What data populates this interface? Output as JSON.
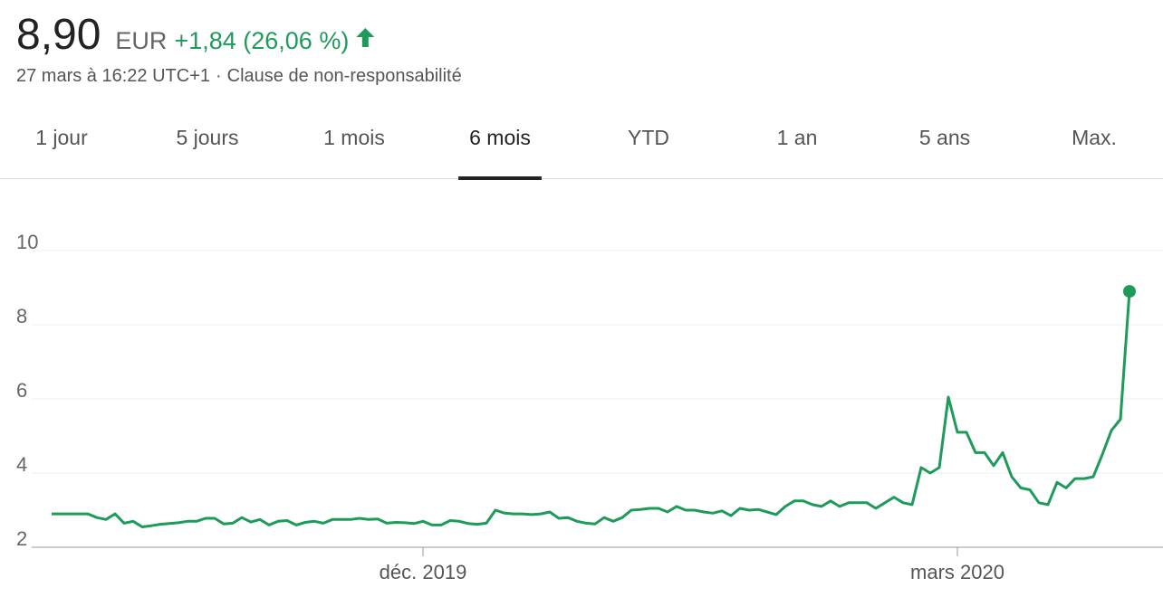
{
  "quote": {
    "price": "8,90",
    "currency": "EUR",
    "change": "+1,84 (26,06 %)",
    "timestamp": "27 mars à 16:22 UTC+1",
    "separator": "·",
    "disclaimer": "Clause de non-responsabilité"
  },
  "tabs": [
    "1 jour",
    "5 jours",
    "1 mois",
    "6 mois",
    "YTD",
    "1 an",
    "5 ans",
    "Max."
  ],
  "selected_tab": 3,
  "chart_data": {
    "type": "line",
    "color": "#1e9b5b",
    "grid": true,
    "categories": [
      null,
      null,
      null,
      null,
      null,
      null,
      null,
      null,
      null,
      null,
      null,
      null,
      null,
      null,
      null,
      null,
      null,
      null,
      null,
      null,
      null,
      null,
      null,
      null,
      null,
      null,
      null,
      null,
      null,
      null,
      null,
      null,
      null,
      null,
      null,
      null,
      null,
      null,
      null,
      null,
      null,
      "déc. 2019",
      null,
      null,
      null,
      null,
      null,
      null,
      null,
      null,
      null,
      null,
      null,
      null,
      null,
      null,
      null,
      null,
      null,
      null,
      null,
      null,
      null,
      null,
      null,
      null,
      null,
      null,
      null,
      null,
      null,
      null,
      null,
      null,
      null,
      null,
      null,
      null,
      null,
      null,
      null,
      null,
      null,
      null,
      null,
      null,
      null,
      null,
      null,
      null,
      null,
      null,
      null,
      null,
      null,
      null,
      null,
      null,
      null,
      null,
      "mars 2020",
      null,
      null,
      null,
      null,
      null,
      null,
      null,
      null,
      null,
      null,
      null,
      null,
      null,
      null,
      null,
      null,
      null,
      null,
      null
    ],
    "values": [
      2.9,
      2.9,
      2.9,
      2.9,
      2.9,
      2.8,
      2.75,
      2.9,
      2.65,
      2.7,
      2.55,
      2.58,
      2.62,
      2.64,
      2.66,
      2.7,
      2.7,
      2.78,
      2.78,
      2.63,
      2.65,
      2.8,
      2.68,
      2.75,
      2.6,
      2.7,
      2.72,
      2.6,
      2.67,
      2.7,
      2.65,
      2.75,
      2.75,
      2.75,
      2.78,
      2.75,
      2.76,
      2.65,
      2.67,
      2.66,
      2.64,
      2.7,
      2.6,
      2.6,
      2.72,
      2.7,
      2.64,
      2.62,
      2.65,
      3.0,
      2.92,
      2.9,
      2.9,
      2.88,
      2.9,
      2.95,
      2.78,
      2.8,
      2.7,
      2.65,
      2.63,
      2.8,
      2.7,
      2.8,
      3.0,
      3.02,
      3.05,
      3.05,
      2.95,
      3.1,
      3.0,
      3.0,
      2.95,
      2.92,
      2.98,
      2.85,
      3.05,
      3.0,
      3.02,
      2.95,
      2.88,
      3.1,
      3.25,
      3.25,
      3.15,
      3.1,
      3.25,
      3.1,
      3.2,
      3.2,
      3.2,
      3.05,
      3.2,
      3.35,
      3.2,
      3.15,
      4.15,
      4.0,
      4.15,
      6.05,
      5.1,
      5.1,
      4.55,
      4.55,
      4.2,
      4.55,
      3.9,
      3.6,
      3.55,
      3.2,
      3.15,
      3.75,
      3.6,
      3.85,
      3.85,
      3.9,
      4.5,
      5.15,
      5.45,
      8.9
    ],
    "ylim": [
      2,
      10
    ],
    "yticks": [
      2,
      4,
      6,
      8,
      10
    ]
  }
}
